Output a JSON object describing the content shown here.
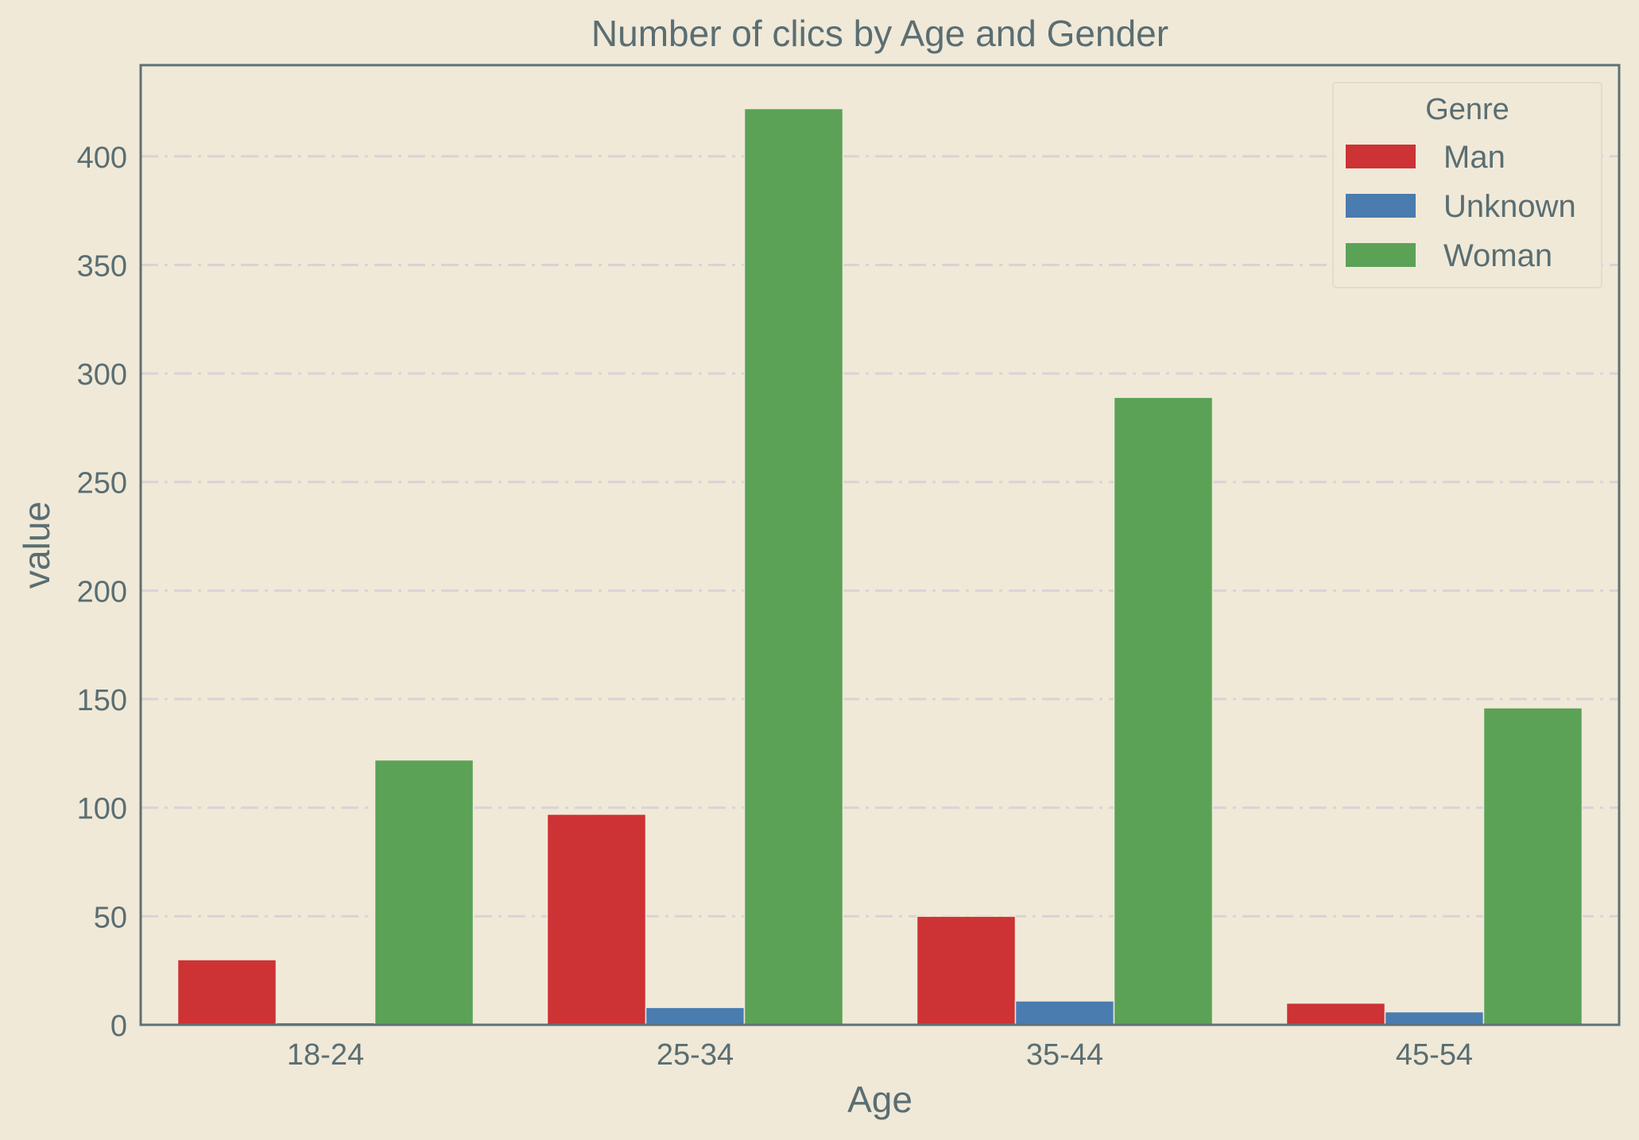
{
  "chart_data": {
    "type": "bar",
    "title": "Number of clics by Age and Gender",
    "xlabel": "Age",
    "ylabel": "value",
    "categories": [
      "18-24",
      "25-34",
      "35-44",
      "45-54"
    ],
    "ylim": [
      0,
      442
    ],
    "yticks": [
      0,
      50,
      100,
      150,
      200,
      250,
      300,
      350,
      400
    ],
    "grid": true,
    "legend": {
      "title": "Genre",
      "placement": "top-right"
    },
    "series": [
      {
        "name": "Man",
        "color": "#cd3234",
        "values": [
          30,
          97,
          50,
          10
        ]
      },
      {
        "name": "Unknown",
        "color": "#4a7caf",
        "values": [
          1,
          8,
          11,
          6
        ]
      },
      {
        "name": "Woman",
        "color": "#5ba257",
        "values": [
          122,
          422,
          289,
          146
        ]
      }
    ]
  }
}
